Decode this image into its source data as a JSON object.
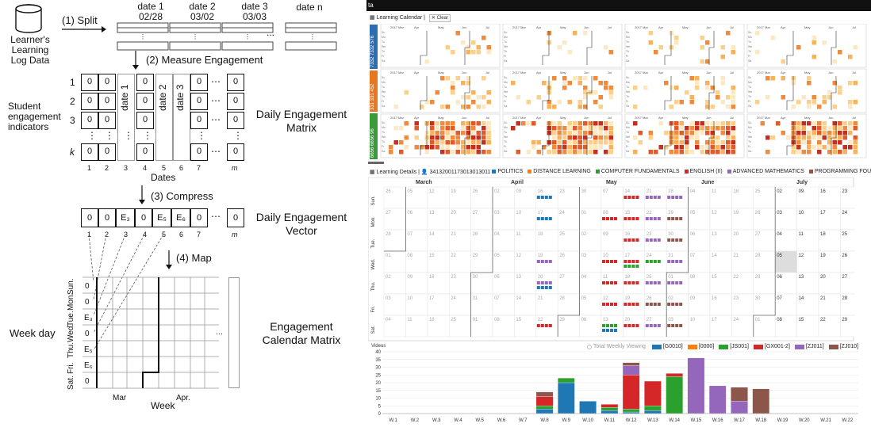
{
  "diagram": {
    "source": {
      "label_lines": [
        "Learner's",
        "Learning",
        "Log Data"
      ]
    },
    "step1": "(1) Split",
    "step2": "(2) Measure Engagement",
    "step3": "(3) Compress",
    "step4": "(4) Map",
    "dates": [
      {
        "title": "date 1",
        "value": "02/28"
      },
      {
        "title": "date 2",
        "value": "03/02"
      },
      {
        "title": "date 3",
        "value": "03/03"
      },
      {
        "title": "date n",
        "value": ""
      }
    ],
    "dots": "...",
    "student_label": [
      "Student",
      "engagement",
      "indicators"
    ],
    "row_labels": [
      "1",
      "2",
      "3",
      "k"
    ],
    "col_labels": [
      "1",
      "2",
      "3",
      "4",
      "5",
      "6",
      "7",
      "m"
    ],
    "dates_axis": "Dates",
    "matrix_cols": [
      "date 1",
      "date 2",
      "date 3"
    ],
    "matrix_title": [
      "Daily Engagement",
      "Matrix"
    ],
    "vector_title": [
      "Daily Engagement",
      "Vector"
    ],
    "vector_cells": [
      "0",
      "0",
      "E₃",
      "0",
      "E₅",
      "E₆",
      "0",
      "0"
    ],
    "calendar_title": [
      "Engagement",
      "Calendar Matrix"
    ],
    "week_day": "Week day",
    "weekdays": [
      "Sun.",
      "Mon.",
      "Tue.",
      "Wed.",
      "Thu.",
      "Fri.",
      "Sat."
    ],
    "cal_cells": [
      "0",
      "0",
      "E₃",
      "0",
      "E₅",
      "E₆",
      "0"
    ],
    "months": [
      "Mar",
      "Apr."
    ],
    "week_axis": "Week",
    "zero": "0",
    "kvar": "k",
    "mvar": "m",
    "ellipsis": "⋯",
    "vdots": "⋮"
  },
  "dashboard": {
    "topbar": "ta",
    "cal_header": "Learning Calendar |",
    "clear_btn": "Clear",
    "group_labels": [
      "7332 7332 576",
      "331 331 452",
      "6656 6656 96"
    ],
    "group_colors": [
      "#2f6db3",
      "#e87722",
      "#3a9a3a"
    ],
    "mini_months": [
      "2017 Mar",
      "Apr",
      "May",
      "Jun",
      "Jul"
    ],
    "details_header": "Learning Details |",
    "student_id": "34132001173013013011",
    "courses": [
      {
        "name": "POLITICS",
        "color": "#1f77b4"
      },
      {
        "name": "DISTANCE LEARNING",
        "color": "#ff7f0e"
      },
      {
        "name": "COMPUTER FUNDAMENTALS",
        "color": "#2ca02c"
      },
      {
        "name": "ENGLISH (II)",
        "color": "#d62728"
      },
      {
        "name": "ADVANCED MATHEMATICS",
        "color": "#9467bd"
      },
      {
        "name": "PROGRAMMING FOUNDATION",
        "color": "#8c564b"
      }
    ],
    "cal_months": [
      "March",
      "April",
      "May",
      "June",
      "July"
    ],
    "cal_days": [
      "Sun.",
      "Mon.",
      "Tue.",
      "Wed.",
      "Thu.",
      "Fri.",
      "Sat."
    ],
    "cal_numbers": [
      [
        "26",
        "05",
        "12",
        "19",
        "26",
        "02",
        "09",
        "16",
        "23",
        "30",
        "07",
        "14",
        "21",
        "28",
        "04",
        "11",
        "18",
        "25",
        "02",
        "09",
        "16",
        "23"
      ],
      [
        "27",
        "06",
        "13",
        "20",
        "27",
        "03",
        "10",
        "17",
        "24",
        "01",
        "08",
        "15",
        "22",
        "29",
        "05",
        "12",
        "19",
        "26",
        "03",
        "10",
        "17",
        "24"
      ],
      [
        "28",
        "07",
        "14",
        "21",
        "28",
        "04",
        "11",
        "18",
        "25",
        "02",
        "09",
        "16",
        "23",
        "30",
        "06",
        "13",
        "20",
        "27",
        "04",
        "11",
        "18",
        "25"
      ],
      [
        "01",
        "08",
        "15",
        "22",
        "29",
        "05",
        "12",
        "19",
        "26",
        "03",
        "10",
        "17",
        "24",
        "31",
        "07",
        "14",
        "21",
        "28",
        "05",
        "12",
        "19",
        "26"
      ],
      [
        "02",
        "09",
        "16",
        "23",
        "30",
        "06",
        "13",
        "20",
        "27",
        "04",
        "11",
        "18",
        "25",
        "01",
        "08",
        "15",
        "22",
        "29",
        "06",
        "13",
        "20",
        "27"
      ],
      [
        "03",
        "10",
        "17",
        "24",
        "31",
        "07",
        "14",
        "21",
        "28",
        "05",
        "12",
        "19",
        "26",
        "02",
        "09",
        "16",
        "23",
        "30",
        "07",
        "14",
        "21",
        "28"
      ],
      [
        "04",
        "11",
        "18",
        "25",
        "01",
        "08",
        "15",
        "22",
        "29",
        "06",
        "13",
        "20",
        "27",
        "03",
        "10",
        "17",
        "24",
        "01",
        "08",
        "15",
        "22",
        "29"
      ]
    ],
    "bar_legend_first": "Total Weekly Viewing",
    "bar_legend": [
      {
        "name": "[G0010]",
        "color": "#1f77b4"
      },
      {
        "name": "[0000]",
        "color": "#ff7f0e"
      },
      {
        "name": "[JS001]",
        "color": "#2ca02c"
      },
      {
        "name": "[GX001-2]",
        "color": "#d62728"
      },
      {
        "name": "[ZJ011]",
        "color": "#9467bd"
      },
      {
        "name": "[ZJ010]",
        "color": "#8c564b"
      }
    ],
    "chart_data": {
      "type": "bar",
      "ylabel": "Videos",
      "ylim": [
        0,
        40
      ],
      "yticks": [
        "0",
        "5",
        "10",
        "15",
        "20",
        "25",
        "30",
        "35",
        "40"
      ],
      "categories": [
        "W.1",
        "W.2",
        "W.3",
        "W.4",
        "W.5",
        "W.6",
        "W.7",
        "W.8",
        "W.9",
        "W.10",
        "W.11",
        "W.12",
        "W.13",
        "W.14",
        "W.15",
        "W.16",
        "W.17",
        "W.18",
        "W.19",
        "W.20",
        "W.21",
        "W.22"
      ],
      "series": [
        {
          "name": "[G0010]",
          "values": [
            0,
            0,
            0,
            0,
            0,
            0,
            0,
            3,
            20,
            8,
            2,
            1,
            2,
            0,
            0,
            0,
            0,
            0,
            0,
            0,
            0,
            0
          ]
        },
        {
          "name": "[0000]",
          "values": [
            0,
            0,
            0,
            0,
            0,
            0,
            0,
            0,
            0,
            0,
            0,
            0,
            0,
            0,
            0,
            0,
            0,
            0,
            0,
            0,
            0,
            0
          ]
        },
        {
          "name": "[JS001]",
          "values": [
            0,
            0,
            0,
            0,
            0,
            0,
            0,
            2,
            3,
            0,
            2,
            2,
            3,
            24,
            0,
            0,
            0,
            0,
            0,
            0,
            0,
            0
          ]
        },
        {
          "name": "[GX001-2]",
          "values": [
            0,
            0,
            0,
            0,
            0,
            0,
            0,
            6,
            0,
            0,
            2,
            22,
            16,
            2,
            0,
            0,
            0,
            0,
            0,
            0,
            0,
            0
          ]
        },
        {
          "name": "[ZJ011]",
          "values": [
            0,
            0,
            0,
            0,
            0,
            0,
            0,
            0,
            0,
            0,
            0,
            6,
            0,
            0,
            36,
            18,
            8,
            0,
            0,
            0,
            0,
            0
          ]
        },
        {
          "name": "[ZJ010]",
          "values": [
            0,
            0,
            0,
            0,
            0,
            0,
            0,
            3,
            0,
            0,
            0,
            2,
            0,
            0,
            0,
            0,
            9,
            16,
            0,
            0,
            0,
            0
          ]
        }
      ]
    }
  }
}
